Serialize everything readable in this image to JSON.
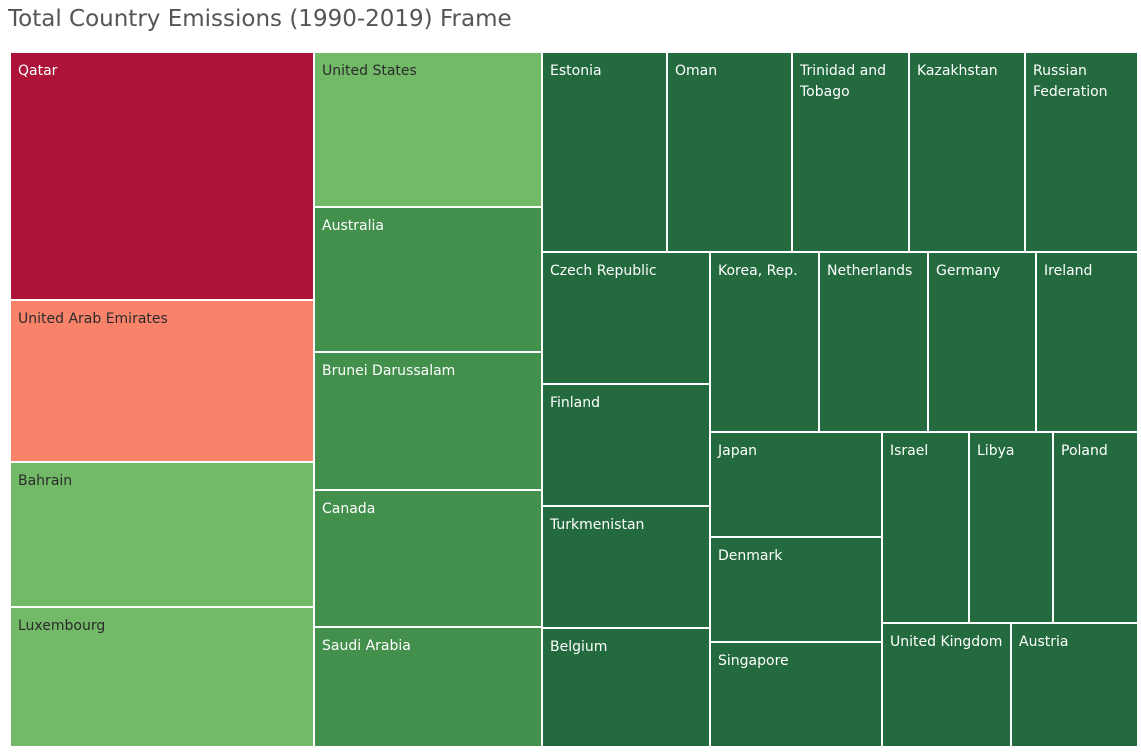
{
  "title": "Total Country Emissions (1990-2019) Frame",
  "colors": {
    "deep_red": "#ad1338",
    "salmon": "#f8826a",
    "light_green": "#72b968",
    "mid_green": "#43904d",
    "dark_green": "#236a3e",
    "dark_label": "#2b2b2b",
    "light_label": "#ffffff"
  },
  "chart_data": {
    "type": "treemap",
    "title": "Total Country Emissions (1990-2019) Frame",
    "color_scale": "red-green diverging",
    "items": [
      {
        "label": "Qatar",
        "color": "#ad1338",
        "text_color": "#ffffff"
      },
      {
        "label": "United Arab Emirates",
        "color": "#f8826a",
        "text_color": "#2b2b2b"
      },
      {
        "label": "Bahrain",
        "color": "#72b968",
        "text_color": "#2b2b2b"
      },
      {
        "label": "Luxembourg",
        "color": "#72b968",
        "text_color": "#2b2b2b"
      },
      {
        "label": "United States",
        "color": "#72b968",
        "text_color": "#2b2b2b"
      },
      {
        "label": "Australia",
        "color": "#43904d",
        "text_color": "#ffffff"
      },
      {
        "label": "Brunei Darussalam",
        "color": "#43904d",
        "text_color": "#ffffff"
      },
      {
        "label": "Canada",
        "color": "#43904d",
        "text_color": "#ffffff"
      },
      {
        "label": "Saudi Arabia",
        "color": "#43904d",
        "text_color": "#ffffff"
      },
      {
        "label": "Estonia",
        "color": "#236a3e",
        "text_color": "#ffffff"
      },
      {
        "label": "Oman",
        "color": "#236a3e",
        "text_color": "#ffffff"
      },
      {
        "label": "Trinidad and Tobago",
        "color": "#236a3e",
        "text_color": "#ffffff"
      },
      {
        "label": "Kazakhstan",
        "color": "#236a3e",
        "text_color": "#ffffff"
      },
      {
        "label": "Russian Federation",
        "color": "#236a3e",
        "text_color": "#ffffff"
      },
      {
        "label": "Czech Republic",
        "color": "#236a3e",
        "text_color": "#ffffff"
      },
      {
        "label": "Finland",
        "color": "#236a3e",
        "text_color": "#ffffff"
      },
      {
        "label": "Turkmenistan",
        "color": "#236a3e",
        "text_color": "#ffffff"
      },
      {
        "label": "Belgium",
        "color": "#236a3e",
        "text_color": "#ffffff"
      },
      {
        "label": "Korea, Rep.",
        "color": "#236a3e",
        "text_color": "#ffffff"
      },
      {
        "label": "Netherlands",
        "color": "#236a3e",
        "text_color": "#ffffff"
      },
      {
        "label": "Germany",
        "color": "#236a3e",
        "text_color": "#ffffff"
      },
      {
        "label": "Ireland",
        "color": "#236a3e",
        "text_color": "#ffffff"
      },
      {
        "label": "Japan",
        "color": "#236a3e",
        "text_color": "#ffffff"
      },
      {
        "label": "Denmark",
        "color": "#236a3e",
        "text_color": "#ffffff"
      },
      {
        "label": "Singapore",
        "color": "#236a3e",
        "text_color": "#ffffff"
      },
      {
        "label": "Israel",
        "color": "#236a3e",
        "text_color": "#ffffff"
      },
      {
        "label": "Libya",
        "color": "#236a3e",
        "text_color": "#ffffff"
      },
      {
        "label": "Poland",
        "color": "#236a3e",
        "text_color": "#ffffff"
      },
      {
        "label": "United Kingdom",
        "color": "#236a3e",
        "text_color": "#ffffff"
      },
      {
        "label": "Austria",
        "color": "#236a3e",
        "text_color": "#ffffff"
      }
    ]
  }
}
